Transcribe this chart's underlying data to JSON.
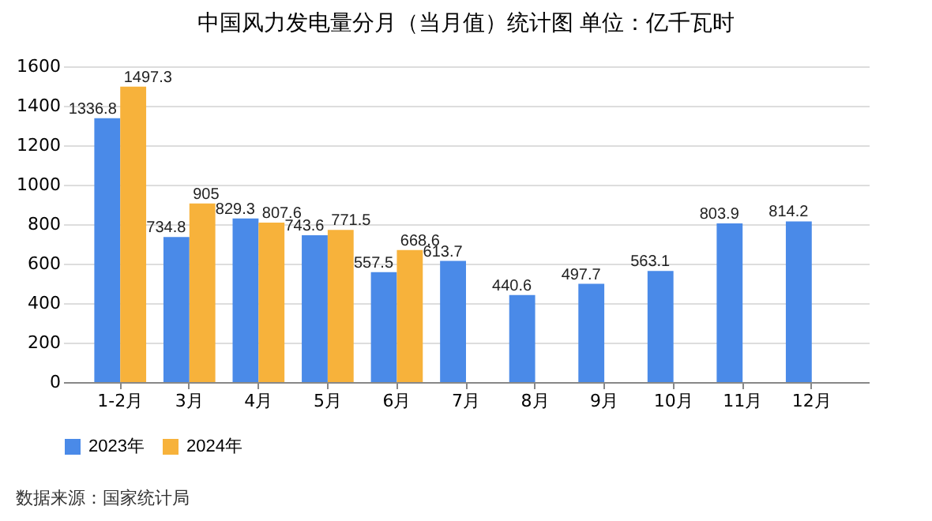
{
  "chart_data": {
    "type": "bar",
    "title": "中国风力发电量分月（当月值）统计图 单位：亿千瓦时",
    "categories": [
      "1-2月",
      "3月",
      "4月",
      "5月",
      "6月",
      "7月",
      "8月",
      "9月",
      "10月",
      "11月",
      "12月"
    ],
    "series": [
      {
        "name": "2023年",
        "color": "#4a8ae8",
        "values": [
          1336.8,
          734.8,
          829.3,
          743.6,
          557.5,
          613.7,
          440.6,
          497.7,
          563.1,
          803.9,
          814.2
        ]
      },
      {
        "name": "2024年",
        "color": "#f7b23b",
        "values": [
          1497.3,
          905,
          807.6,
          771.5,
          668.6,
          null,
          null,
          null,
          null,
          null,
          null
        ]
      }
    ],
    "ylim": [
      0,
      1600
    ],
    "yticks": [
      0,
      200,
      400,
      600,
      800,
      1000,
      1200,
      1400,
      1600
    ],
    "grid": "y",
    "legend": "bottom",
    "data_labels": true,
    "annotations": [
      "数据来源：国家统计局"
    ]
  }
}
